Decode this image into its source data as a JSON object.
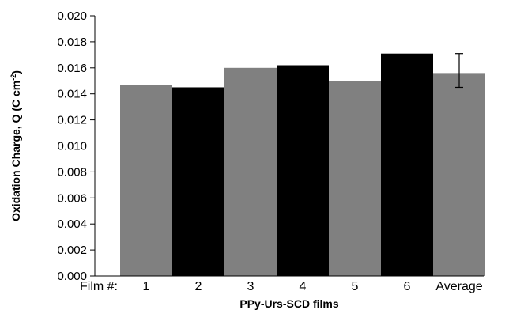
{
  "chart_data": {
    "type": "bar",
    "title": "",
    "xlabel": "PPy-Urs-SCD films",
    "ylabel_main": "Oxidation Charge, Q (C cm",
    "ylabel_sup": "-2",
    "ylabel_tail": ")",
    "category_prefix": "Film #:",
    "categories": [
      "1",
      "2",
      "3",
      "4",
      "5",
      "6",
      "Average"
    ],
    "values": [
      0.0147,
      0.0145,
      0.016,
      0.0162,
      0.015,
      0.0171,
      0.0156
    ],
    "bar_colors": [
      "#808080",
      "#000000",
      "#808080",
      "#000000",
      "#808080",
      "#000000",
      "#808080"
    ],
    "error_bar": {
      "category": "Average",
      "plus": 0.0015,
      "minus": 0.0011
    },
    "ylim": [
      0,
      0.02
    ],
    "yticks": [
      "0.000",
      "0.002",
      "0.004",
      "0.006",
      "0.008",
      "0.010",
      "0.012",
      "0.014",
      "0.016",
      "0.018",
      "0.020"
    ],
    "grid": false,
    "legend": "none"
  }
}
